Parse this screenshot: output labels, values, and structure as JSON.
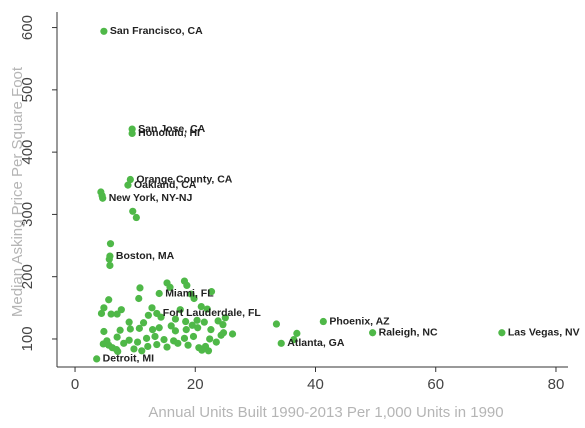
{
  "chart_data": {
    "type": "scatter",
    "title": "",
    "xlabel": "Annual Units Built 1990-2013 Per 1,000 Units in 1990",
    "ylabel": "Median Asking Price Per Square Foot",
    "xlim": [
      -3,
      82
    ],
    "ylim": [
      55,
      625
    ],
    "xticks": [
      0,
      20,
      40,
      60,
      80
    ],
    "yticks": [
      100,
      200,
      300,
      400,
      500,
      600
    ],
    "grid": false,
    "legend": "none",
    "colors": {
      "point": "#4fb848",
      "axis": "#333333",
      "axis_title": "#b5b5b5"
    },
    "labeled_points": [
      {
        "name": "San Francisco, CA",
        "x": 4.8,
        "y": 594
      },
      {
        "name": "San Jose, CA",
        "x": 9.5,
        "y": 437
      },
      {
        "name": "Honolulu, HI",
        "x": 9.5,
        "y": 430
      },
      {
        "name": "Orange County, CA",
        "x": 9.2,
        "y": 356
      },
      {
        "name": "Oakland, CA",
        "x": 8.8,
        "y": 347
      },
      {
        "name": "New York, NY-NJ",
        "x": 4.6,
        "y": 326
      },
      {
        "name": "Boston, MA",
        "x": 5.8,
        "y": 233
      },
      {
        "name": "Miami, FL",
        "x": 14.0,
        "y": 173
      },
      {
        "name": "Fort Lauderdale, FL",
        "x": 13.6,
        "y": 141
      },
      {
        "name": "Phoenix, AZ",
        "x": 41.3,
        "y": 128
      },
      {
        "name": "Raleigh, NC",
        "x": 49.5,
        "y": 110
      },
      {
        "name": "Las Vegas, NV",
        "x": 71.0,
        "y": 110
      },
      {
        "name": "Atlanta, GA",
        "x": 34.3,
        "y": 93
      },
      {
        "name": "Detroit, MI",
        "x": 3.6,
        "y": 68
      }
    ],
    "other_points": [
      [
        4.3,
        336
      ],
      [
        4.5,
        330
      ],
      [
        9.6,
        305
      ],
      [
        10.2,
        295
      ],
      [
        5.9,
        253
      ],
      [
        5.7,
        228
      ],
      [
        5.8,
        218
      ],
      [
        15.3,
        190
      ],
      [
        18.2,
        193
      ],
      [
        18.6,
        186
      ],
      [
        10.8,
        182
      ],
      [
        15.8,
        183
      ],
      [
        19.3,
        172
      ],
      [
        22.7,
        176
      ],
      [
        5.6,
        163
      ],
      [
        10.6,
        165
      ],
      [
        19.8,
        165
      ],
      [
        21.0,
        152
      ],
      [
        22.0,
        148
      ],
      [
        4.8,
        150
      ],
      [
        7.7,
        147
      ],
      [
        12.8,
        150
      ],
      [
        17.5,
        147
      ],
      [
        4.4,
        141
      ],
      [
        6.0,
        140
      ],
      [
        7.0,
        140
      ],
      [
        12.2,
        138
      ],
      [
        14.3,
        135
      ],
      [
        16.7,
        132
      ],
      [
        18.4,
        128
      ],
      [
        20.3,
        130
      ],
      [
        21.5,
        127
      ],
      [
        23.8,
        129
      ],
      [
        25.0,
        134
      ],
      [
        9.0,
        127
      ],
      [
        11.4,
        126
      ],
      [
        16.0,
        121
      ],
      [
        19.5,
        122
      ],
      [
        24.6,
        123
      ],
      [
        33.5,
        124
      ],
      [
        4.8,
        112
      ],
      [
        7.5,
        114
      ],
      [
        9.2,
        116
      ],
      [
        10.7,
        117
      ],
      [
        12.9,
        115
      ],
      [
        14.0,
        118
      ],
      [
        16.7,
        113
      ],
      [
        18.5,
        115
      ],
      [
        20.4,
        118
      ],
      [
        22.6,
        115
      ],
      [
        24.7,
        110
      ],
      [
        26.2,
        108
      ],
      [
        36.9,
        109
      ],
      [
        5.3,
        97
      ],
      [
        7.0,
        103
      ],
      [
        9.0,
        98
      ],
      [
        11.9,
        101
      ],
      [
        13.3,
        104
      ],
      [
        14.8,
        99
      ],
      [
        16.4,
        97
      ],
      [
        18.2,
        101
      ],
      [
        19.7,
        104
      ],
      [
        22.4,
        100
      ],
      [
        24.3,
        106
      ],
      [
        4.7,
        92
      ],
      [
        5.6,
        90
      ],
      [
        6.2,
        86
      ],
      [
        8.1,
        93
      ],
      [
        10.4,
        95
      ],
      [
        12.1,
        88
      ],
      [
        13.6,
        91
      ],
      [
        15.3,
        87
      ],
      [
        17.1,
        93
      ],
      [
        18.8,
        90
      ],
      [
        20.6,
        86
      ],
      [
        21.7,
        88
      ],
      [
        23.5,
        95
      ],
      [
        36.4,
        99
      ],
      [
        6.9,
        83
      ],
      [
        7.1,
        80
      ],
      [
        9.8,
        84
      ],
      [
        11.1,
        81
      ],
      [
        21.1,
        82
      ],
      [
        22.2,
        81
      ]
    ]
  }
}
